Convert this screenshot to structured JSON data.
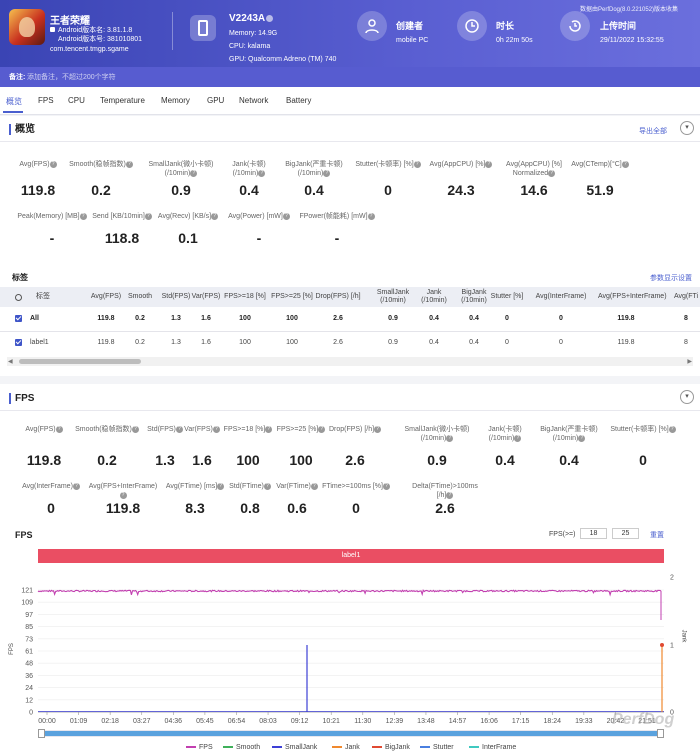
{
  "header": {
    "app_name": "王者荣耀",
    "app_android_version": "Android版本名: 3.81.1.8",
    "app_build": "Android版本号: 381010801",
    "package": "com.tencent.tmgp.sgame",
    "device_model": "V2243A",
    "memory": "Memory: 14.9G",
    "cpu": "CPU: kalama",
    "gpu": "GPU: Qualcomm Adreno (TM) 740",
    "creator_label": "创建者",
    "creator_value": "mobile PC",
    "duration_label": "时长",
    "duration_value": "0h 22m 50s",
    "upload_label": "上传时间",
    "upload_value": "29/11/2022 15:32:55",
    "data_source": "数据由PerfDog(8.0.221052)版本收集",
    "note_label": "备注:",
    "note_placeholder": "添加备注，不超过200个字符"
  },
  "tabs": [
    "概览",
    "FPS",
    "CPU",
    "Temperature",
    "Memory",
    "GPU",
    "Network",
    "Battery"
  ],
  "overview": {
    "title": "概览",
    "export": "导出全部",
    "labels": [
      "Avg(FPS)",
      "Smooth(稳帧指数)",
      "SmallJank(微小卡顿)\n(/10min)",
      "Jank(卡顿)\n(/10min)",
      "BigJank(严重卡顿)\n(/10min)",
      "Stutter(卡顿率) [%]",
      "Avg(AppCPU) [%]",
      "Avg(AppCPU) [%]\nNormalized",
      "Avg(CTemp)[°C]"
    ],
    "values": [
      "119.8",
      "0.2",
      "0.9",
      "0.4",
      "0.4",
      "0",
      "24.3",
      "14.6",
      "51.9"
    ],
    "labels2": [
      "Peak(Memory) [MB]",
      "Send [KB/10min]",
      "Avg(Recv) [KB/s]",
      "Avg(Power) [mW]",
      "FPower(帧能耗) [mW]"
    ],
    "values2": [
      "-",
      "118.8",
      "0.1",
      "-",
      "-"
    ]
  },
  "label_table": {
    "title": "标签",
    "settings": "参数显示设置",
    "headers": [
      "标签",
      "Avg(FPS)",
      "Smooth",
      "Std(FPS)",
      "Var(FPS)",
      "FPS>=18 [%]",
      "FPS>=25 [%]",
      "Drop(FPS) [/h]",
      "SmallJank\n(/10min)",
      "Jank\n(/10min)",
      "BigJank\n(/10min)",
      "Stutter [%]",
      "Avg(InterFrame)",
      "Avg(FPS+InterFrame)",
      "Avg(FTi"
    ],
    "rows": [
      [
        "All",
        "119.8",
        "0.2",
        "1.3",
        "1.6",
        "100",
        "100",
        "2.6",
        "0.9",
        "0.4",
        "0.4",
        "0",
        "0",
        "119.8",
        "8"
      ],
      [
        "label1",
        "119.8",
        "0.2",
        "1.3",
        "1.6",
        "100",
        "100",
        "2.6",
        "0.9",
        "0.4",
        "0.4",
        "0",
        "0",
        "119.8",
        "8"
      ]
    ]
  },
  "fps_panel": {
    "title": "FPS",
    "labels": [
      "Avg(FPS)",
      "Smooth(稳帧指数)",
      "Std(FPS)",
      "Var(FPS)",
      "FPS>=18 [%]",
      "FPS>=25 [%]",
      "Drop(FPS) [/h]",
      "SmallJank(微小卡顿)\n(/10min)",
      "Jank(卡顿)\n(/10min)",
      "BigJank(严重卡顿)\n(/10min)",
      "Stutter(卡顿率) [%]"
    ],
    "values": [
      "119.8",
      "0.2",
      "1.3",
      "1.6",
      "100",
      "100",
      "2.6",
      "0.9",
      "0.4",
      "0.4",
      "0"
    ],
    "labels2": [
      "Avg(InterFrame)",
      "Avg(FPS+InterFrame)",
      "Avg(FTime) [ms]",
      "Std(FTime)",
      "Var(FTime)",
      "FTime>=100ms [%]",
      "Delta(FTime)>100ms [/h]"
    ],
    "values2": [
      "0",
      "119.8",
      "8.3",
      "0.8",
      "0.6",
      "0",
      "2.6"
    ],
    "chart_title": "FPS",
    "threshold_label": "FPS(>=)",
    "threshold1": "18",
    "threshold2": "25",
    "reset": "重置",
    "label_bar": "label1"
  },
  "chart_data": {
    "type": "line",
    "title": "FPS",
    "ylabel": "FPS",
    "y2label": "Jank",
    "ylim": [
      0,
      121
    ],
    "y2lim": [
      0,
      2
    ],
    "yticks": [
      "121",
      "109",
      "97",
      "85",
      "73",
      "61",
      "48",
      "36",
      "24",
      "12",
      "0"
    ],
    "y2ticks": [
      "2",
      "1",
      "0"
    ],
    "x": [
      "00:00",
      "01:09",
      "02:18",
      "03:27",
      "04:36",
      "05:45",
      "06:54",
      "08:03",
      "09:12",
      "10:21",
      "11:30",
      "12:39",
      "13:48",
      "14:57",
      "16:06",
      "17:15",
      "18:24",
      "19:33",
      "20:42",
      "21:51"
    ],
    "series": [
      {
        "name": "FPS",
        "color": "#c23fb0",
        "value": 120
      },
      {
        "name": "Smooth",
        "color": "#3fb05a"
      },
      {
        "name": "SmallJank",
        "color": "#3d3fd6"
      },
      {
        "name": "Jank",
        "color": "#f0892e"
      },
      {
        "name": "BigJank",
        "color": "#e04a32"
      },
      {
        "name": "Stutter",
        "color": "#4a7fe0"
      },
      {
        "name": "InterFrame",
        "color": "#3fc9c0"
      }
    ]
  },
  "colors": {
    "accent": "#4a5fcf",
    "label_bar": "#ea4e63"
  },
  "watermark": "PerfDog"
}
